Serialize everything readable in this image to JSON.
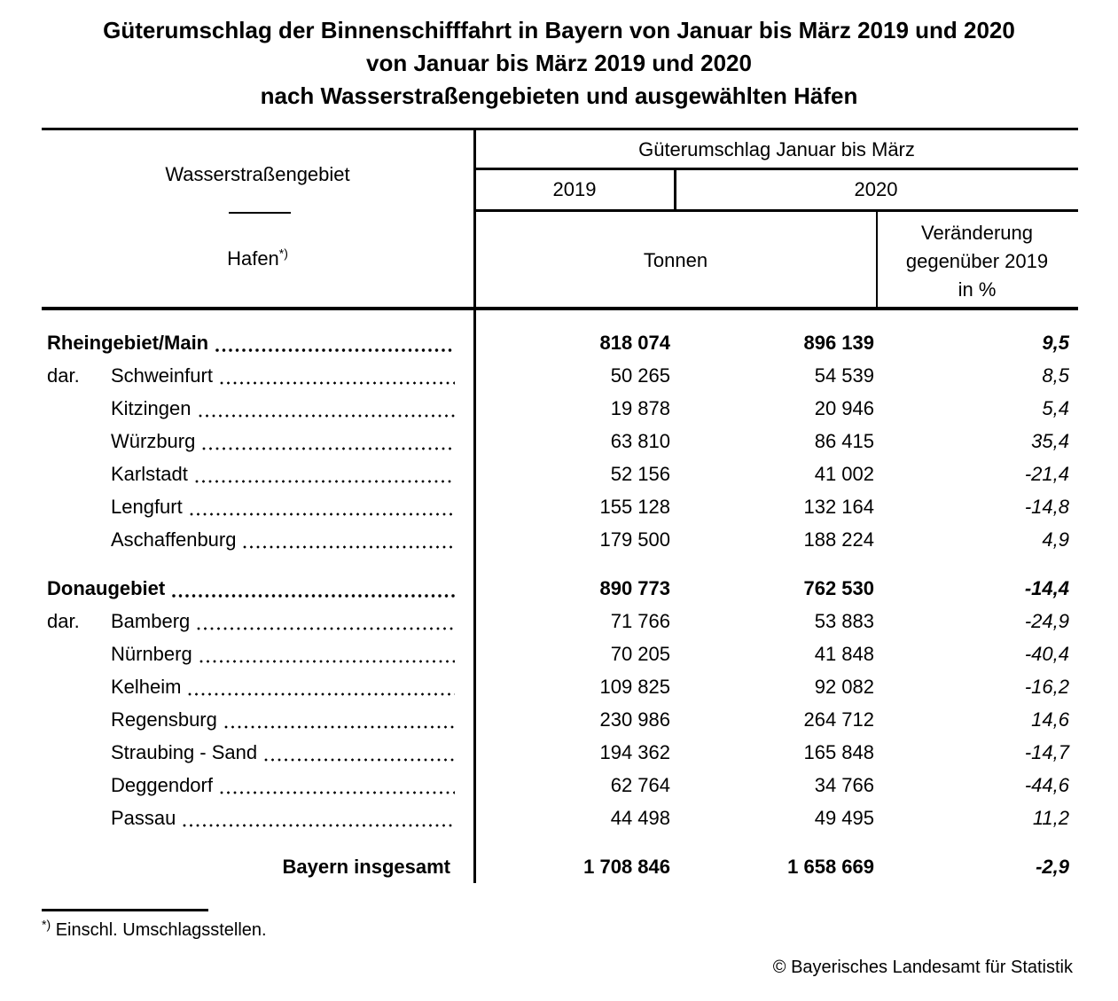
{
  "title": {
    "line1": "Güterumschlag der Binnenschifffahrt in Bayern von Januar bis März 2019 und 2020",
    "line2": "von Januar bis März 2019 und 2020",
    "line3": "nach Wasserstraßengebieten und ausgewählten Häfen"
  },
  "table": {
    "header": {
      "col1_top": "Wasserstraßengebiet",
      "col1_bottom": "Hafen",
      "footnote_mark": "*)",
      "span_top": "Güterumschlag Januar bis März",
      "year_left": "2019",
      "year_right": "2020",
      "unit": "Tonnen",
      "change_line1": "Veränderung",
      "change_line2": "gegenüber 2019",
      "change_line3": "in %"
    },
    "rows": [
      {
        "type": "group",
        "gap": false,
        "prefix": "",
        "label": "Rheingebiet/Main",
        "v2019": "818 074",
        "v2020": "896 139",
        "pct": "9,5"
      },
      {
        "type": "port",
        "gap": false,
        "prefix": "dar.",
        "label": "Schweinfurt",
        "v2019": "50 265",
        "v2020": "54 539",
        "pct": "8,5"
      },
      {
        "type": "port",
        "gap": false,
        "prefix": "",
        "label": "Kitzingen",
        "v2019": "19 878",
        "v2020": "20 946",
        "pct": "5,4"
      },
      {
        "type": "port",
        "gap": false,
        "prefix": "",
        "label": "Würzburg",
        "v2019": "63 810",
        "v2020": "86 415",
        "pct": "35,4"
      },
      {
        "type": "port",
        "gap": false,
        "prefix": "",
        "label": "Karlstadt",
        "v2019": "52 156",
        "v2020": "41 002",
        "pct": "-21,4"
      },
      {
        "type": "port",
        "gap": false,
        "prefix": "",
        "label": "Lengfurt",
        "v2019": "155 128",
        "v2020": "132 164",
        "pct": "-14,8"
      },
      {
        "type": "port",
        "gap": false,
        "prefix": "",
        "label": "Aschaffenburg",
        "v2019": "179 500",
        "v2020": "188 224",
        "pct": "4,9"
      },
      {
        "type": "group",
        "gap": true,
        "prefix": "",
        "label": "Donaugebiet",
        "v2019": "890 773",
        "v2020": "762 530",
        "pct": "-14,4"
      },
      {
        "type": "port",
        "gap": false,
        "prefix": "dar.",
        "label": "Bamberg",
        "v2019": "71 766",
        "v2020": "53 883",
        "pct": "-24,9"
      },
      {
        "type": "port",
        "gap": false,
        "prefix": "",
        "label": "Nürnberg",
        "v2019": "70 205",
        "v2020": "41 848",
        "pct": "-40,4"
      },
      {
        "type": "port",
        "gap": false,
        "prefix": "",
        "label": "Kelheim",
        "v2019": "109 825",
        "v2020": "92 082",
        "pct": "-16,2"
      },
      {
        "type": "port",
        "gap": false,
        "prefix": "",
        "label": "Regensburg",
        "v2019": "230 986",
        "v2020": "264 712",
        "pct": "14,6"
      },
      {
        "type": "port",
        "gap": false,
        "prefix": "",
        "label": "Straubing - Sand",
        "v2019": "194 362",
        "v2020": "165 848",
        "pct": "-14,7"
      },
      {
        "type": "port",
        "gap": false,
        "prefix": "",
        "label": "Deggendorf",
        "v2019": "62 764",
        "v2020": "34 766",
        "pct": "-44,6"
      },
      {
        "type": "port",
        "gap": false,
        "prefix": "",
        "label": "Passau",
        "v2019": "44 498",
        "v2020": "49 495",
        "pct": "11,2"
      },
      {
        "type": "total",
        "gap": true,
        "prefix": "",
        "label": "Bayern insgesamt",
        "v2019": "1 708 846",
        "v2020": "1 658 669",
        "pct": "-2,9"
      }
    ]
  },
  "footnote": {
    "mark": "*)",
    "text": "Einschl. Umschlagsstellen."
  },
  "copyright": "© Bayerisches Landesamt für Statistik"
}
